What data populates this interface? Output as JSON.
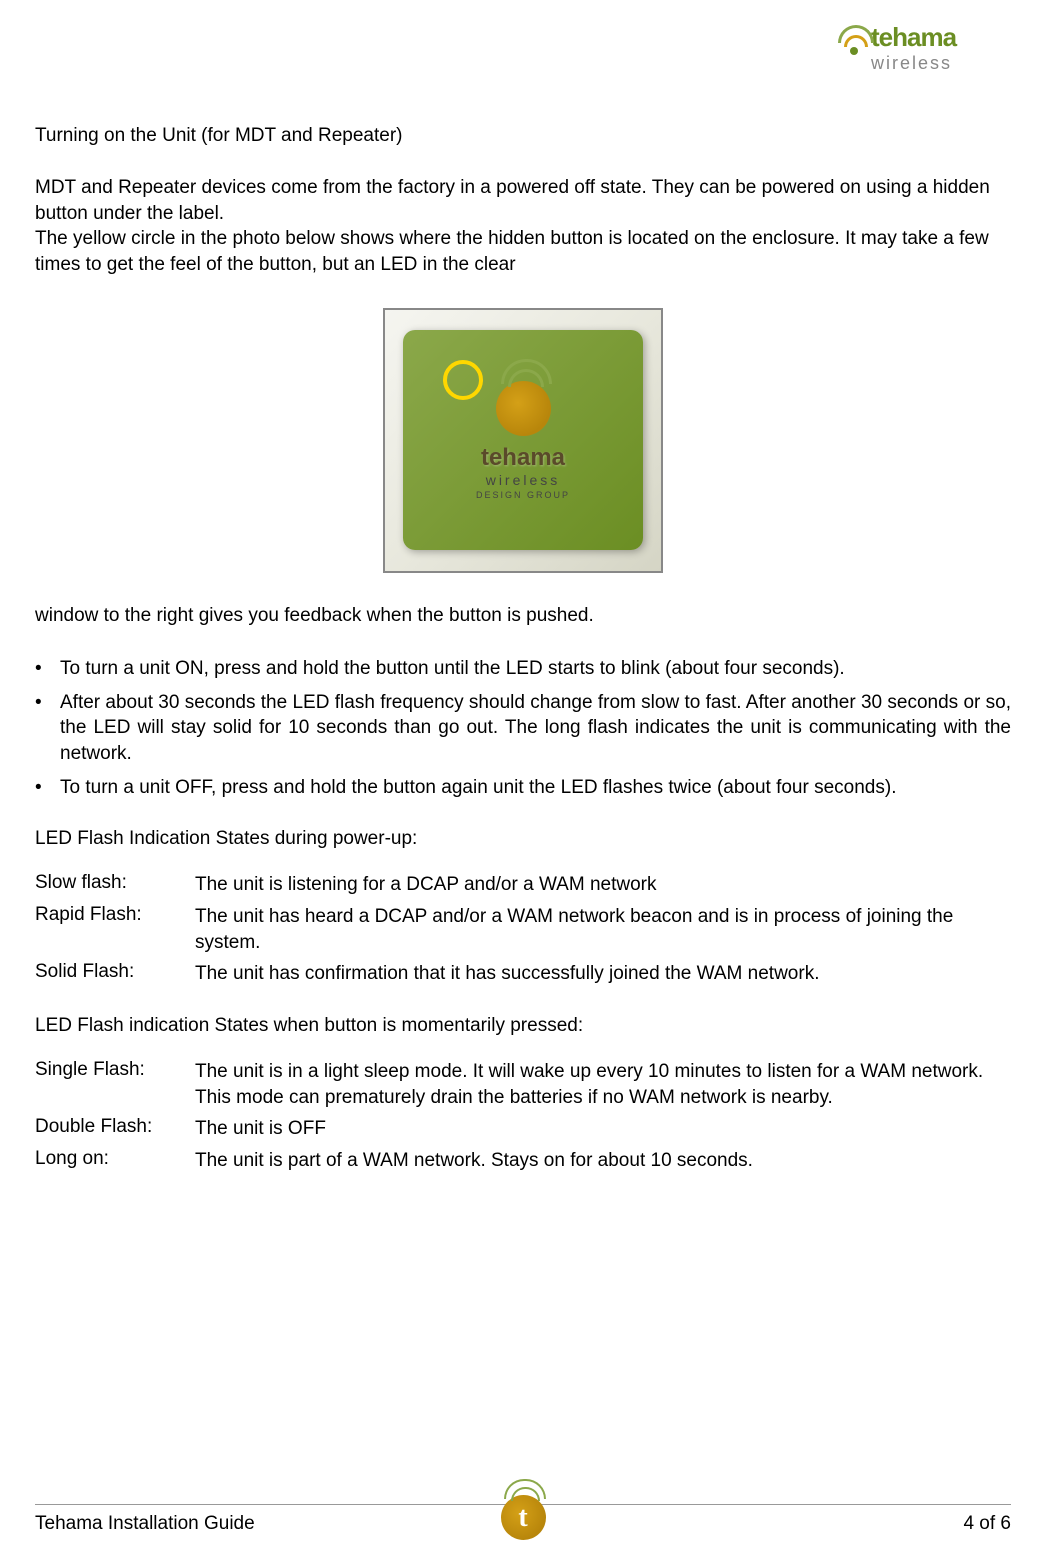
{
  "brand": {
    "name": "tehama",
    "subtitle": "wireless",
    "design_group": "DESIGN GROUP",
    "colors": {
      "green": "#6b8e23",
      "light_green": "#8ba84a",
      "gold": "#d4a017",
      "gray": "#888888"
    }
  },
  "heading": "Turning on the Unit (for MDT and Repeater)",
  "intro_para1": "MDT and Repeater devices come from the factory in a powered off state. They can be powered on using a hidden button under the label.",
  "intro_para2": "The yellow circle in the photo below shows where the hidden button is located on the enclosure. It may take a few times to get the feel of the button, but an LED in the clear",
  "device_image": {
    "label_main": "tehama",
    "label_sub": "wireless",
    "label_small": "DESIGN GROUP"
  },
  "after_image": "window to the right gives you feedback when the button is pushed.",
  "bullets": [
    "To turn a unit ON, press and hold the button until the LED starts to blink (about four seconds).",
    "After about 30 seconds the LED flash frequency should change from slow to fast. After another 30 seconds or so, the LED will stay solid for 10 seconds than go out. The long flash indicates the unit is communicating with the network.",
    "To turn a unit OFF, press and hold the button again unit the LED flashes twice (about four seconds)."
  ],
  "section1_heading": "LED Flash Indication States during power-up:",
  "section1_rows": [
    {
      "label": "Slow flash:",
      "desc": "The unit is listening for a DCAP and/or a WAM network"
    },
    {
      "label": "Rapid Flash:",
      "desc": "The unit has heard a DCAP and/or a WAM network beacon and is in process of joining the system."
    },
    {
      "label": "Solid Flash:",
      "desc": "The unit has confirmation that it has successfully joined the WAM network."
    }
  ],
  "section2_heading": "LED Flash indication States when button is momentarily pressed:",
  "section2_rows": [
    {
      "label": "Single Flash:",
      "desc": "The unit is in a light sleep mode.  It will wake up every 10 minutes to listen for a WAM network.  This mode can prematurely drain the batteries if no WAM network is nearby."
    },
    {
      "label": "Double Flash:",
      "desc": "The unit is OFF"
    },
    {
      "label": "Long on:",
      "desc": "The unit is part of a WAM network.  Stays on for about 10 seconds."
    }
  ],
  "footer": {
    "left": "Tehama Installation Guide",
    "right": "4 of 6",
    "logo_letter": "t"
  }
}
